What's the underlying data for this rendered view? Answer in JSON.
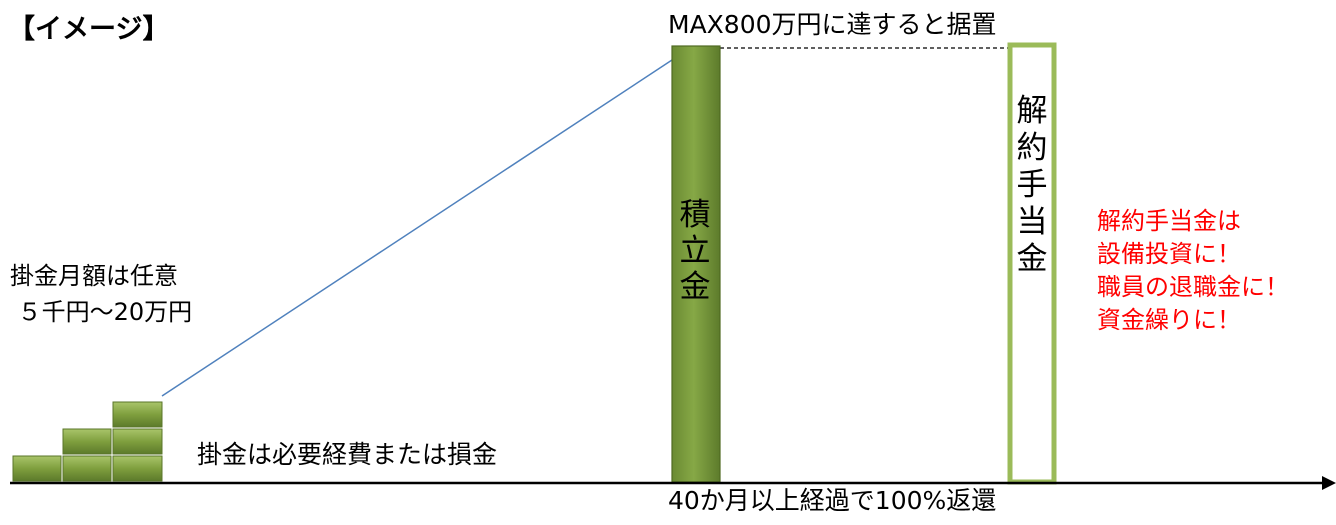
{
  "title": "【イメージ】",
  "max_note": "MAX800万円に達すると据置",
  "monthly": {
    "line1": "掛金月額は任意",
    "line2": " ５千円～20万円"
  },
  "tax_note": "掛金は必要経費または損金",
  "return_note": "40か月以上経過で100%返還",
  "accumulated_label": [
    "積",
    "立",
    "金"
  ],
  "cancellation_label": [
    "解",
    "約",
    "手",
    "当",
    "金"
  ],
  "merits": {
    "line1": "解約手当金は",
    "line2": "設備投資に！",
    "line3": "職員の退職金に！",
    "line4": "資金繰りに！"
  },
  "colors": {
    "bar_green": "#76923c",
    "outline_green": "#9bbb59",
    "merits_red": "#ff0000",
    "growth_line": "#4f81bd"
  }
}
